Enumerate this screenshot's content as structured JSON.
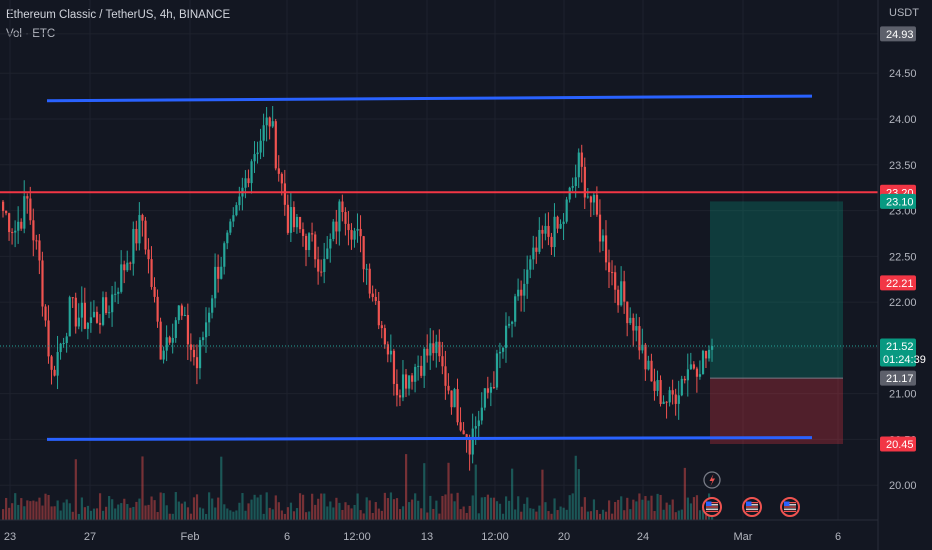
{
  "header": {
    "title": "Ethereum Classic / TetherUS, 4h, BINANCE",
    "volume_label": "Vol · ETC"
  },
  "price_axis": {
    "currency": "USDT",
    "ticks": [
      "24.93",
      "24.50",
      "24.00",
      "23.50",
      "23.00",
      "22.50",
      "22.00",
      "21.50",
      "21.00",
      "20.50",
      "20.00"
    ],
    "tick_values": [
      24.93,
      24.5,
      24.0,
      23.5,
      23.0,
      22.5,
      22.0,
      21.5,
      21.0,
      20.5,
      20.0
    ],
    "range": [
      19.62,
      25.3
    ]
  },
  "price_tags": [
    {
      "text": "24.93",
      "value": 24.93,
      "color": "#5d606b"
    },
    {
      "text": "23.20",
      "value": 23.2,
      "color": "#f23645"
    },
    {
      "text": "23.10",
      "value": 23.1,
      "color": "#089981"
    },
    {
      "text": "22.21",
      "value": 22.21,
      "color": "#f23645"
    },
    {
      "text": "21.52",
      "value": 21.52,
      "color": "#089981",
      "countdown": "01:24:39"
    },
    {
      "text": "21.17",
      "value": 21.17,
      "color": "#5d606b"
    },
    {
      "text": "20.45",
      "value": 20.45,
      "color": "#f23645"
    }
  ],
  "time_axis": {
    "labels": [
      "23",
      "27",
      "Feb",
      "6",
      "12:00",
      "13",
      "12:00",
      "20",
      "24",
      "Mar",
      "6"
    ]
  },
  "drawings": {
    "resistance_top": {
      "value_start": 24.2,
      "value_end": 24.25,
      "color": "#2962ff"
    },
    "support_bottom": {
      "value_start": 20.5,
      "value_end": 20.52,
      "color": "#2962ff"
    },
    "horizontal_line": {
      "value": 23.2,
      "color": "#f23645"
    },
    "position": {
      "entry": 21.17,
      "target": 23.1,
      "stop": 20.45
    }
  },
  "events": {
    "lightning_icon": "lightning-icon",
    "flag_icon": "us-flag-icon"
  },
  "colors": {
    "up": "#26a69a",
    "down": "#ef5350",
    "background": "#131722"
  },
  "chart_data": {
    "type": "candlestick",
    "symbol": "Ethereum Classic / TetherUS",
    "interval": "4h",
    "exchange": "BINANCE",
    "ylim": [
      19.62,
      25.3
    ],
    "keypoints": [
      {
        "t": 0,
        "c": 23.0
      },
      {
        "t": 4,
        "c": 22.8
      },
      {
        "t": 8,
        "c": 23.1
      },
      {
        "t": 12,
        "c": 22.4
      },
      {
        "t": 16,
        "c": 21.2
      },
      {
        "t": 22,
        "c": 21.9
      },
      {
        "t": 28,
        "c": 21.8
      },
      {
        "t": 34,
        "c": 21.9
      },
      {
        "t": 40,
        "c": 22.4
      },
      {
        "t": 46,
        "c": 22.9
      },
      {
        "t": 52,
        "c": 21.5
      },
      {
        "t": 58,
        "c": 21.9
      },
      {
        "t": 64,
        "c": 21.3
      },
      {
        "t": 70,
        "c": 22.3
      },
      {
        "t": 76,
        "c": 22.8
      },
      {
        "t": 82,
        "c": 23.6
      },
      {
        "t": 88,
        "c": 24.0
      },
      {
        "t": 94,
        "c": 22.9
      },
      {
        "t": 100,
        "c": 22.7
      },
      {
        "t": 106,
        "c": 22.4
      },
      {
        "t": 112,
        "c": 23.1
      },
      {
        "t": 118,
        "c": 22.6
      },
      {
        "t": 124,
        "c": 21.9
      },
      {
        "t": 130,
        "c": 21.1
      },
      {
        "t": 136,
        "c": 21.3
      },
      {
        "t": 142,
        "c": 21.5
      },
      {
        "t": 148,
        "c": 21.0
      },
      {
        "t": 154,
        "c": 20.5
      },
      {
        "t": 160,
        "c": 21.0
      },
      {
        "t": 166,
        "c": 21.6
      },
      {
        "t": 172,
        "c": 22.2
      },
      {
        "t": 178,
        "c": 22.7
      },
      {
        "t": 184,
        "c": 22.8
      },
      {
        "t": 190,
        "c": 23.5
      },
      {
        "t": 196,
        "c": 22.9
      },
      {
        "t": 202,
        "c": 22.2
      },
      {
        "t": 208,
        "c": 21.8
      },
      {
        "t": 214,
        "c": 21.1
      },
      {
        "t": 220,
        "c": 20.9
      },
      {
        "t": 226,
        "c": 21.3
      },
      {
        "t": 232,
        "c": 21.4
      },
      {
        "t": 234,
        "c": 21.52
      }
    ],
    "last": 21.52
  }
}
